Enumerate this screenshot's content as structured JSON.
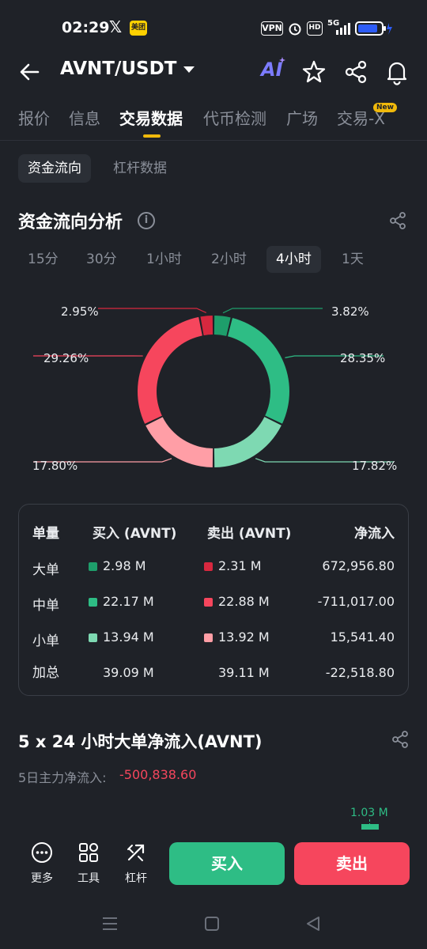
{
  "status_bar": {
    "time": "02:29",
    "x_logo": "𝕏",
    "meituan": "美团",
    "vpn": "VPN",
    "hd": "HD",
    "network": "5G"
  },
  "header": {
    "pair": "AVNT/USDT",
    "ai": "AI"
  },
  "tabs": [
    {
      "label": "报价"
    },
    {
      "label": "信息"
    },
    {
      "label": "交易数据"
    },
    {
      "label": "代币检测"
    },
    {
      "label": "广场"
    },
    {
      "label": "交易-X"
    }
  ],
  "new_badge": "New",
  "subtabs": [
    {
      "label": "资金流向"
    },
    {
      "label": "杠杆数据"
    }
  ],
  "section_title": "资金流向分析",
  "periods": [
    {
      "label": "15分"
    },
    {
      "label": "30分"
    },
    {
      "label": "1小时"
    },
    {
      "label": "2小时"
    },
    {
      "label": "4小时"
    },
    {
      "label": "1天"
    }
  ],
  "chart_data": {
    "type": "pie",
    "categories": [
      "大单买入",
      "中单买入",
      "小单买入",
      "小单卖出",
      "中单卖出",
      "大单卖出"
    ],
    "values": [
      3.82,
      28.35,
      17.82,
      17.8,
      29.26,
      2.95
    ],
    "labels": [
      "3.82%",
      "28.35%",
      "17.82%",
      "17.80%",
      "29.26%",
      "2.95%"
    ],
    "colors": [
      "#1e9e6b",
      "#2ebd85",
      "#7ed9b2",
      "#ff9ea6",
      "#f6465d",
      "#d7283f"
    ]
  },
  "table": {
    "headers": [
      "单量",
      "买入 (AVNT)",
      "卖出 (AVNT)",
      "净流入"
    ],
    "rows": [
      {
        "label": "大单",
        "buy": "2.98 M",
        "sell": "2.31 M",
        "net": "672,956.80",
        "buy_color": "#1e9e6b",
        "sell_color": "#d7283f"
      },
      {
        "label": "中单",
        "buy": "22.17 M",
        "sell": "22.88 M",
        "net": "-711,017.00",
        "buy_color": "#2ebd85",
        "sell_color": "#f6465d"
      },
      {
        "label": "小单",
        "buy": "13.94 M",
        "sell": "13.92 M",
        "net": "15,541.40",
        "buy_color": "#7ed9b2",
        "sell_color": "#ff9ea6"
      },
      {
        "label": "加总",
        "buy": "39.09 M",
        "sell": "39.11 M",
        "net": "-22,518.80"
      }
    ]
  },
  "section2": {
    "title": "5 x 24 小时大单净流入(AVNT)",
    "net_label": "5日主力净流入:",
    "net_value": "-500,838.60",
    "marker": "1.03 M"
  },
  "bottom_bar": {
    "tools": [
      {
        "label": "更多"
      },
      {
        "label": "工具"
      },
      {
        "label": "杠杆"
      }
    ],
    "buy": "买入",
    "sell": "卖出"
  },
  "colors": {
    "accent": "#f0b90b",
    "up": "#2ebd85",
    "down": "#f6465d"
  }
}
